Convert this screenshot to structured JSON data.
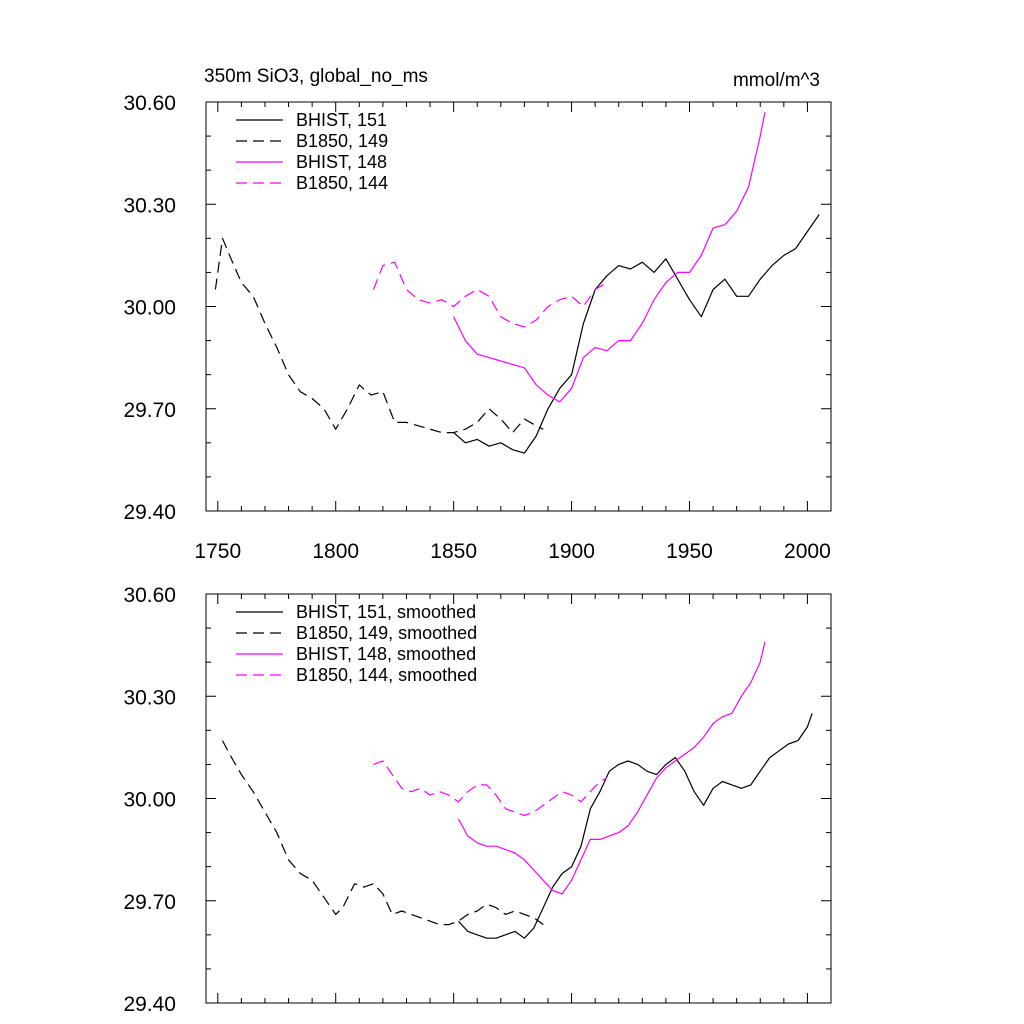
{
  "chart_data": [
    {
      "type": "line",
      "title": "350m SiO3, global_no_ms",
      "units": "mmol/m^3",
      "xlim": [
        1750,
        2000
      ],
      "ylim": [
        29.4,
        30.6
      ],
      "x_ticks": [
        1750,
        1800,
        1850,
        1900,
        1950,
        2000
      ],
      "x_tick_labels": [
        "1750",
        "1800",
        "1850",
        "1900",
        "1950",
        "2000"
      ],
      "y_ticks": [
        29.4,
        29.7,
        30.0,
        30.3,
        30.6
      ],
      "y_tick_labels": [
        "29.40",
        "29.70",
        "30.00",
        "30.30",
        "30.60"
      ],
      "legend_position": "top-left",
      "grid": false,
      "series": [
        {
          "name": "BHIST, 151",
          "color": "#000000",
          "dash": "solid",
          "x": [
            1850,
            1855,
            1860,
            1865,
            1870,
            1875,
            1880,
            1885,
            1890,
            1895,
            1900,
            1905,
            1910,
            1915,
            1920,
            1925,
            1930,
            1935,
            1940,
            1945,
            1950,
            1955,
            1960,
            1965,
            1970,
            1975,
            1980,
            1985,
            1990,
            1995,
            2000,
            2005
          ],
          "y": [
            29.63,
            29.6,
            29.61,
            29.59,
            29.6,
            29.58,
            29.57,
            29.62,
            29.7,
            29.76,
            29.8,
            29.95,
            30.05,
            30.09,
            30.12,
            30.11,
            30.13,
            30.1,
            30.14,
            30.08,
            30.02,
            29.97,
            30.05,
            30.08,
            30.03,
            30.03,
            30.08,
            30.12,
            30.15,
            30.17,
            30.22,
            30.27
          ]
        },
        {
          "name": "B1850, 149",
          "color": "#000000",
          "dash": "dashed",
          "x": [
            1749,
            1752,
            1755,
            1760,
            1765,
            1770,
            1775,
            1780,
            1785,
            1790,
            1795,
            1800,
            1805,
            1810,
            1815,
            1820,
            1825,
            1830,
            1835,
            1840,
            1845,
            1850,
            1855,
            1860,
            1865,
            1870,
            1875,
            1880,
            1885,
            1888
          ],
          "y": [
            30.05,
            30.2,
            30.15,
            30.07,
            30.03,
            29.95,
            29.88,
            29.8,
            29.75,
            29.73,
            29.7,
            29.64,
            29.7,
            29.77,
            29.74,
            29.75,
            29.66,
            29.66,
            29.65,
            29.64,
            29.63,
            29.63,
            29.64,
            29.66,
            29.7,
            29.67,
            29.63,
            29.67,
            29.65,
            29.64
          ]
        },
        {
          "name": "BHIST, 148",
          "color": "#ff00ff",
          "dash": "solid",
          "x": [
            1850,
            1855,
            1860,
            1865,
            1870,
            1875,
            1880,
            1885,
            1890,
            1895,
            1900,
            1905,
            1910,
            1915,
            1920,
            1925,
            1930,
            1935,
            1940,
            1945,
            1950,
            1955,
            1960,
            1965,
            1970,
            1975,
            1980,
            1982
          ],
          "y": [
            29.97,
            29.9,
            29.86,
            29.85,
            29.84,
            29.83,
            29.82,
            29.77,
            29.74,
            29.72,
            29.76,
            29.85,
            29.88,
            29.87,
            29.9,
            29.9,
            29.95,
            30.02,
            30.07,
            30.1,
            30.1,
            30.15,
            30.23,
            30.24,
            30.28,
            30.35,
            30.5,
            30.57
          ]
        },
        {
          "name": "B1850, 144",
          "color": "#ff00ff",
          "dash": "dashed",
          "x": [
            1816,
            1820,
            1825,
            1830,
            1835,
            1840,
            1845,
            1850,
            1855,
            1860,
            1865,
            1870,
            1875,
            1880,
            1885,
            1890,
            1895,
            1900,
            1905,
            1910,
            1915
          ],
          "y": [
            30.05,
            30.12,
            30.13,
            30.05,
            30.02,
            30.01,
            30.02,
            30.0,
            30.03,
            30.05,
            30.03,
            29.97,
            29.95,
            29.94,
            29.96,
            30.0,
            30.02,
            30.03,
            30.0,
            30.05,
            30.07
          ]
        }
      ]
    },
    {
      "type": "line",
      "title": "",
      "xlim": [
        1750,
        2000
      ],
      "ylim": [
        29.4,
        30.6
      ],
      "y_ticks": [
        29.4,
        29.7,
        30.0,
        30.3,
        30.6
      ],
      "y_tick_labels": [
        "29.40",
        "29.70",
        "30.00",
        "30.30",
        "30.60"
      ],
      "legend_position": "top-left",
      "grid": false,
      "series": [
        {
          "name": "BHIST, 151, smoothed",
          "color": "#000000",
          "dash": "solid",
          "x": [
            1852,
            1856,
            1860,
            1864,
            1868,
            1872,
            1876,
            1880,
            1884,
            1888,
            1892,
            1896,
            1900,
            1904,
            1908,
            1912,
            1916,
            1920,
            1924,
            1928,
            1932,
            1936,
            1940,
            1944,
            1948,
            1952,
            1956,
            1960,
            1964,
            1968,
            1972,
            1976,
            1980,
            1984,
            1988,
            1992,
            1996,
            2000,
            2002
          ],
          "y": [
            29.64,
            29.61,
            29.6,
            29.59,
            29.59,
            29.6,
            29.61,
            29.59,
            29.62,
            29.68,
            29.74,
            29.78,
            29.8,
            29.86,
            29.97,
            30.02,
            30.08,
            30.1,
            30.11,
            30.1,
            30.08,
            30.07,
            30.1,
            30.12,
            30.08,
            30.02,
            29.98,
            30.03,
            30.05,
            30.04,
            30.03,
            30.04,
            30.08,
            30.12,
            30.14,
            30.16,
            30.17,
            30.21,
            30.25
          ]
        },
        {
          "name": "B1850, 149, smoothed",
          "color": "#000000",
          "dash": "dashed",
          "x": [
            1752,
            1755,
            1760,
            1765,
            1770,
            1775,
            1780,
            1785,
            1790,
            1795,
            1800,
            1803,
            1808,
            1812,
            1816,
            1820,
            1824,
            1828,
            1832,
            1836,
            1840,
            1844,
            1848,
            1852,
            1856,
            1860,
            1864,
            1868,
            1872,
            1876,
            1880,
            1884,
            1888
          ],
          "y": [
            30.17,
            30.13,
            30.07,
            30.02,
            29.96,
            29.9,
            29.82,
            29.78,
            29.76,
            29.71,
            29.66,
            29.68,
            29.75,
            29.74,
            29.75,
            29.72,
            29.66,
            29.67,
            29.66,
            29.65,
            29.64,
            29.63,
            29.63,
            29.64,
            29.66,
            29.67,
            29.69,
            29.68,
            29.66,
            29.67,
            29.66,
            29.65,
            29.63
          ]
        },
        {
          "name": "BHIST, 148, smoothed",
          "color": "#ff00ff",
          "dash": "solid",
          "x": [
            1852,
            1856,
            1860,
            1864,
            1868,
            1872,
            1876,
            1880,
            1884,
            1888,
            1892,
            1896,
            1900,
            1904,
            1908,
            1912,
            1916,
            1920,
            1924,
            1928,
            1932,
            1936,
            1940,
            1944,
            1948,
            1952,
            1956,
            1960,
            1964,
            1968,
            1972,
            1976,
            1980,
            1982
          ],
          "y": [
            29.94,
            29.89,
            29.87,
            29.86,
            29.86,
            29.85,
            29.84,
            29.82,
            29.79,
            29.76,
            29.73,
            29.72,
            29.76,
            29.82,
            29.88,
            29.88,
            29.89,
            29.9,
            29.92,
            29.96,
            30.01,
            30.06,
            30.09,
            30.11,
            30.13,
            30.15,
            30.18,
            30.22,
            30.24,
            30.25,
            30.3,
            30.34,
            30.4,
            30.46
          ]
        },
        {
          "name": "B1850, 144, smoothed",
          "color": "#ff00ff",
          "dash": "dashed",
          "x": [
            1816,
            1820,
            1824,
            1828,
            1832,
            1836,
            1840,
            1844,
            1848,
            1852,
            1856,
            1860,
            1864,
            1868,
            1872,
            1876,
            1880,
            1884,
            1888,
            1892,
            1896,
            1900,
            1904,
            1908,
            1912,
            1915
          ],
          "y": [
            30.1,
            30.11,
            30.07,
            30.03,
            30.02,
            30.03,
            30.01,
            30.02,
            30.01,
            29.99,
            30.02,
            30.04,
            30.04,
            30.01,
            29.97,
            29.96,
            29.95,
            29.96,
            29.98,
            30.0,
            30.02,
            30.01,
            29.99,
            30.02,
            30.05,
            30.06
          ]
        }
      ]
    }
  ]
}
